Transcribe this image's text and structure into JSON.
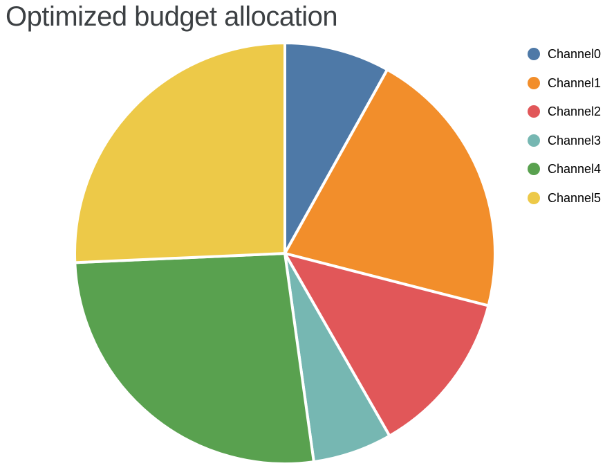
{
  "chart_data": {
    "type": "pie",
    "title": "Optimized budget allocation",
    "labels": [
      "Channel0",
      "Channel1",
      "Channel2",
      "Channel3",
      "Channel4",
      "Channel5"
    ],
    "values_percent": [
      8.1,
      20.9,
      12.7,
      6.1,
      26.5,
      25.7
    ],
    "colors": [
      "#4E79A7",
      "#F28E2B",
      "#E15759",
      "#76B7B2",
      "#59A14F",
      "#EDC948"
    ],
    "start_angle": "12 o'clock",
    "direction": "clockwise",
    "slice_border_color": "#ffffff",
    "legend_position": "right",
    "legend_marker": "circle"
  },
  "styles": {
    "title_color": "#3C4043",
    "legend_text_color": "#000000",
    "background_color": "#ffffff"
  }
}
